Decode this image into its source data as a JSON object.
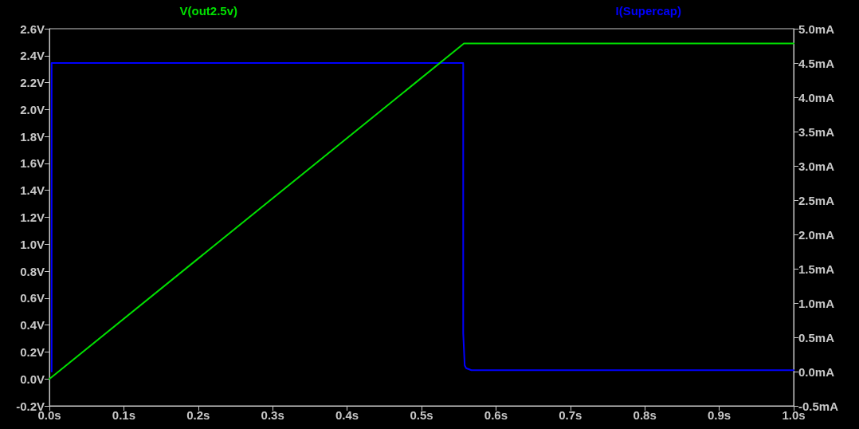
{
  "chart_data": {
    "type": "line",
    "xlim": [
      0,
      1.0
    ],
    "xticks": [
      {
        "value": 0,
        "label": "0.0s"
      },
      {
        "value": 0.1,
        "label": "0.1s"
      },
      {
        "value": 0.2,
        "label": "0.2s"
      },
      {
        "value": 0.3,
        "label": "0.3s"
      },
      {
        "value": 0.4,
        "label": "0.4s"
      },
      {
        "value": 0.5,
        "label": "0.5s"
      },
      {
        "value": 0.6,
        "label": "0.6s"
      },
      {
        "value": 0.7,
        "label": "0.7s"
      },
      {
        "value": 0.8,
        "label": "0.8s"
      },
      {
        "value": 0.9,
        "label": "0.9s"
      },
      {
        "value": 1.0,
        "label": "1.0s"
      }
    ],
    "ylim": [
      -0.2,
      2.6
    ],
    "yticks": [
      {
        "value": -0.2,
        "label": "-0.2V"
      },
      {
        "value": 0,
        "label": "0.0V"
      },
      {
        "value": 0.2,
        "label": "0.2V"
      },
      {
        "value": 0.4,
        "label": "0.4V"
      },
      {
        "value": 0.6,
        "label": "0.6V"
      },
      {
        "value": 0.8,
        "label": "0.8V"
      },
      {
        "value": 1.0,
        "label": "1.0V"
      },
      {
        "value": 1.2,
        "label": "1.2V"
      },
      {
        "value": 1.4,
        "label": "1.4V"
      },
      {
        "value": 1.6,
        "label": "1.6V"
      },
      {
        "value": 1.8,
        "label": "1.8V"
      },
      {
        "value": 2.0,
        "label": "2.0V"
      },
      {
        "value": 2.2,
        "label": "2.2V"
      },
      {
        "value": 2.4,
        "label": "2.4V"
      },
      {
        "value": 2.6,
        "label": "2.6V"
      }
    ],
    "y2lim": [
      -0.5,
      5.0
    ],
    "y2ticks": [
      {
        "value": -0.5,
        "label": "-0.5mA"
      },
      {
        "value": 0,
        "label": "0.0mA"
      },
      {
        "value": 0.5,
        "label": "0.5mA"
      },
      {
        "value": 1.0,
        "label": "1.0mA"
      },
      {
        "value": 1.5,
        "label": "1.5mA"
      },
      {
        "value": 2.0,
        "label": "2.0mA"
      },
      {
        "value": 2.5,
        "label": "2.5mA"
      },
      {
        "value": 3.0,
        "label": "3.0mA"
      },
      {
        "value": 3.5,
        "label": "3.5mA"
      },
      {
        "value": 4.0,
        "label": "4.0mA"
      },
      {
        "value": 4.5,
        "label": "4.5mA"
      },
      {
        "value": 5.0,
        "label": "5.0mA"
      }
    ],
    "grid": false,
    "legend": "top",
    "marker": "none",
    "line_style": "solid",
    "series": [
      {
        "name": "V(out2.5v)",
        "color": "#00e000",
        "x": [
          0,
          0.557,
          1.0
        ],
        "values": [
          0,
          2.49,
          2.49
        ]
      },
      {
        "name": "I(Supercap)",
        "color": "#0000ff",
        "axis": "y2",
        "x": [
          0.003,
          0.003,
          0.556,
          0.556,
          0.558,
          0.56,
          0.567,
          1.0
        ],
        "values": [
          0,
          4.5,
          4.5,
          0.56,
          0.09,
          0.05,
          0.02,
          0.02
        ]
      }
    ]
  }
}
